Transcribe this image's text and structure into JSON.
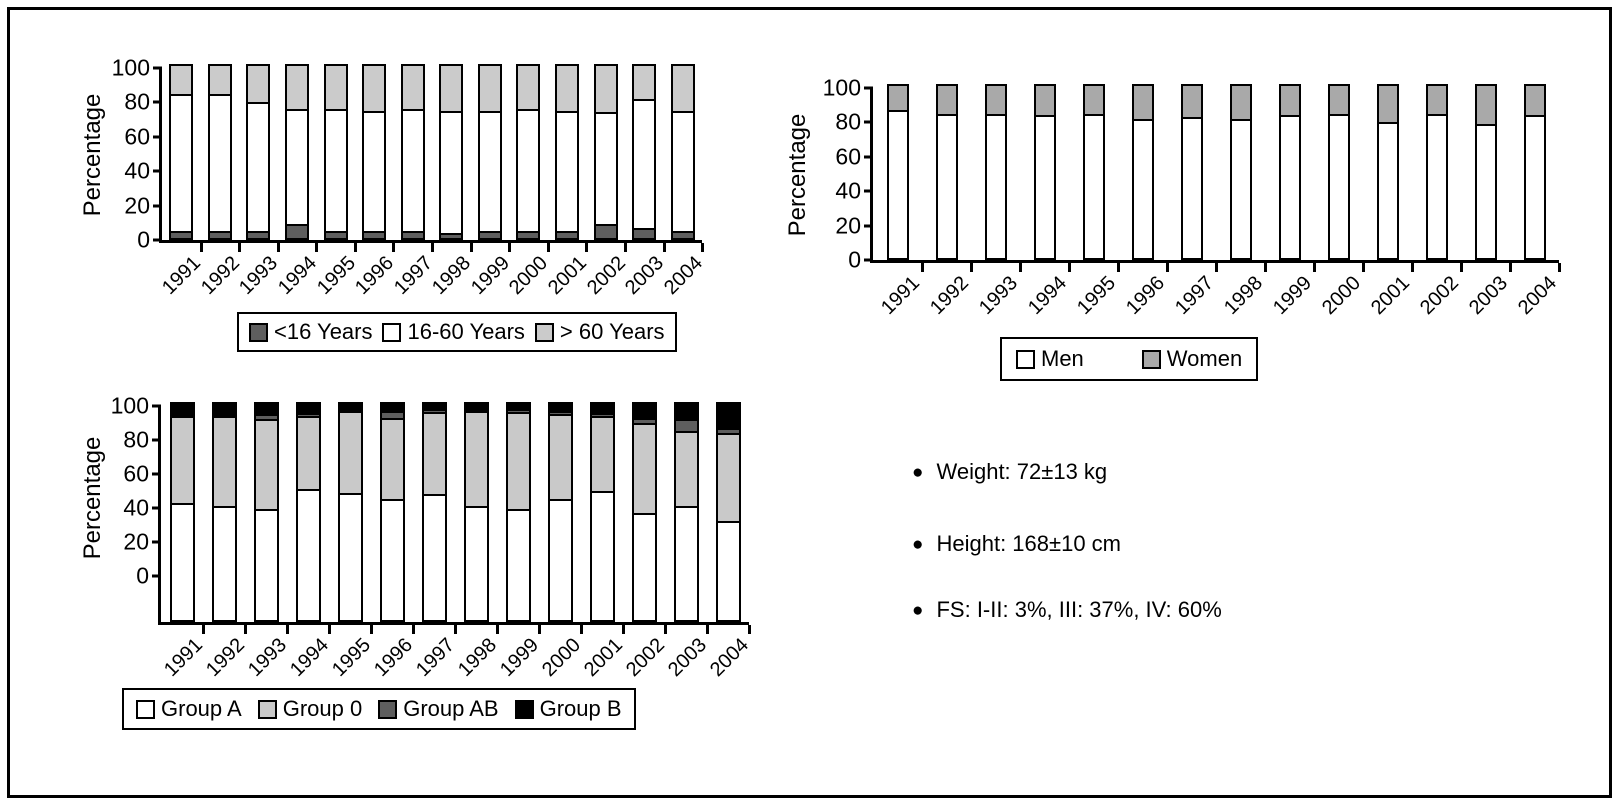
{
  "chart_data": [
    {
      "type": "bar",
      "stacked": true,
      "title": "",
      "ylabel": "Percentage",
      "xlabel": "",
      "ylim": [
        0,
        100
      ],
      "yticks": [
        0,
        20,
        40,
        60,
        80,
        100
      ],
      "grid": false,
      "legend_position": "bottom",
      "categories": [
        "1991",
        "1992",
        "1993",
        "1994",
        "1995",
        "1996",
        "1997",
        "1998",
        "1999",
        "2000",
        "2001",
        "2002",
        "2003",
        "2004"
      ],
      "series": [
        {
          "name": "<16 Years",
          "color": "#5e5e5e",
          "values": [
            4,
            4,
            4,
            8,
            4,
            4,
            4,
            3,
            4,
            4,
            4,
            8,
            6,
            4
          ]
        },
        {
          "name": "16-60 Years",
          "color": "#ffffff",
          "values": [
            80,
            80,
            75,
            67,
            71,
            70,
            71,
            71,
            70,
            71,
            70,
            65,
            75,
            70
          ]
        },
        {
          "name": "> 60 Years",
          "color": "#cbcbcb",
          "values": [
            16,
            16,
            21,
            25,
            25,
            26,
            25,
            26,
            26,
            25,
            26,
            27,
            19,
            26
          ]
        }
      ]
    },
    {
      "type": "bar",
      "stacked": true,
      "title": "",
      "ylabel": "Percentage",
      "xlabel": "",
      "ylim": [
        0,
        100
      ],
      "yticks": [
        0,
        20,
        40,
        60,
        80,
        100
      ],
      "grid": false,
      "legend_position": "bottom",
      "categories": [
        "1991",
        "1992",
        "1993",
        "1994",
        "1995",
        "1996",
        "1997",
        "1998",
        "1999",
        "2000",
        "2001",
        "2002",
        "2003",
        "2004"
      ],
      "series": [
        {
          "name": "Men",
          "color": "#ffffff",
          "values": [
            86,
            84,
            84,
            83,
            84,
            81,
            82,
            81,
            83,
            84,
            79,
            84,
            78,
            83
          ]
        },
        {
          "name": "Women",
          "color": "#a9a9a9",
          "values": [
            14,
            16,
            16,
            17,
            16,
            19,
            18,
            19,
            17,
            16,
            21,
            16,
            22,
            17
          ]
        }
      ]
    },
    {
      "type": "bar",
      "stacked": true,
      "title": "",
      "ylabel": "Percentage",
      "xlabel": "",
      "ylim": [
        0,
        100
      ],
      "yticks": [
        0,
        20,
        40,
        60,
        80,
        100
      ],
      "grid": false,
      "legend_position": "bottom",
      "categories": [
        "1991",
        "1992",
        "1993",
        "1994",
        "1995",
        "1996",
        "1997",
        "1998",
        "1999",
        "2000",
        "2001",
        "2002",
        "2003",
        "2004"
      ],
      "series": [
        {
          "name": "Group A",
          "color": "#ffffff",
          "values": [
            42,
            40,
            38,
            50,
            48,
            44,
            47,
            40,
            38,
            44,
            49,
            36,
            40,
            31
          ]
        },
        {
          "name": "Group 0",
          "color": "#c9c9c9",
          "values": [
            51,
            53,
            53,
            43,
            48,
            48,
            48,
            56,
            57,
            50,
            44,
            53,
            44,
            52
          ]
        },
        {
          "name": "Group AB",
          "color": "#5e5e5e",
          "values": [
            1,
            1,
            3,
            2,
            1,
            4,
            2,
            1,
            2,
            2,
            2,
            3,
            7,
            3
          ]
        },
        {
          "name": "Group B",
          "color": "#000000",
          "values": [
            6,
            6,
            6,
            5,
            3,
            4,
            3,
            3,
            3,
            4,
            5,
            8,
            9,
            14
          ]
        }
      ]
    }
  ],
  "notes": {
    "bullet": "●",
    "items": [
      {
        "text": "Weight: 72±13 kg"
      },
      {
        "text": "Height: 168±10 cm"
      },
      {
        "text": "FS: I-II: 3%, III: 37%, IV: 60%"
      }
    ]
  }
}
